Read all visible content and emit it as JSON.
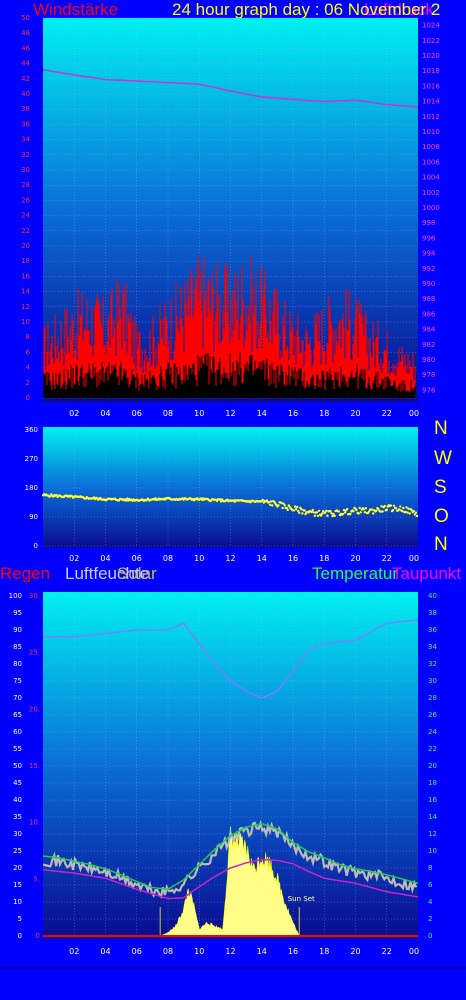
{
  "header": {
    "windstaerke": "Windstärke",
    "title": "24 hour graph day : 06 November 2",
    "luftdruck_overlap": "Luftdruck"
  },
  "compass": [
    "N",
    "W",
    "S",
    "O",
    "N"
  ],
  "legend2": {
    "regen": "Regen",
    "luftfeuchte": "Luftfeuchte",
    "solar": "Solar",
    "temperatur": "Temperatur",
    "taupunkt": "Taupunkt"
  },
  "annotation": {
    "sunset": "Sun Set"
  },
  "colors": {
    "background": "#0000ff",
    "wind_gust": "#ff0000",
    "wind_avg": "#000000",
    "pressure": "#cc33cc",
    "direction": "#ffff33",
    "humidity": "#8877ff",
    "temperature": "#22cc44",
    "dewpoint": "#cc22cc",
    "solar": "#ffff88",
    "temp_raw": "#bbbbbb"
  },
  "chart_data": [
    {
      "type": "line",
      "title": "Windstärke / Luftdruck",
      "x_ticks": [
        "02",
        "04",
        "06",
        "08",
        "10",
        "12",
        "14",
        "16",
        "18",
        "20",
        "22",
        "00"
      ],
      "y_left_ticks": [
        "0",
        "2",
        "4",
        "6",
        "8",
        "10",
        "12",
        "14",
        "16",
        "18",
        "20",
        "22",
        "24",
        "26",
        "28",
        "30",
        "32",
        "34",
        "36",
        "38",
        "40",
        "42",
        "44",
        "46",
        "48",
        "50"
      ],
      "y_right_ticks": [
        "976",
        "978",
        "980",
        "982",
        "984",
        "986",
        "988",
        "990",
        "992",
        "994",
        "996",
        "998",
        "1000",
        "1002",
        "1004",
        "1006",
        "1008",
        "1010",
        "1012",
        "1014",
        "1016",
        "1018",
        "1020",
        "1022",
        "1024"
      ],
      "ylim_left": [
        0,
        50
      ],
      "ylim_right": [
        975,
        1025
      ],
      "series": [
        {
          "name": "Luftdruck",
          "axis": "right",
          "x": [
            0,
            2,
            4,
            6,
            8,
            10,
            12,
            14,
            16,
            18,
            20,
            22,
            24
          ],
          "values": [
            1018.2,
            1017.5,
            1016.9,
            1016.7,
            1016.5,
            1016.3,
            1015.4,
            1014.6,
            1014.3,
            1014.0,
            1014.2,
            1013.6,
            1013.3
          ]
        },
        {
          "name": "Windstärke Böen",
          "axis": "left",
          "x": [
            0,
            1,
            2,
            3,
            4,
            5,
            6,
            7,
            8,
            9,
            10,
            11,
            12,
            13,
            14,
            15,
            16,
            17,
            18,
            19,
            20,
            21,
            22,
            23,
            24
          ],
          "values": [
            9,
            11,
            13,
            14,
            12,
            16,
            9,
            10,
            13,
            15,
            18,
            17,
            16,
            18,
            16,
            14,
            11,
            10,
            12,
            14,
            13,
            10,
            9,
            7,
            6
          ]
        },
        {
          "name": "Windstärke Mittel",
          "axis": "left",
          "x": [
            0,
            1,
            2,
            3,
            4,
            5,
            6,
            7,
            8,
            9,
            10,
            11,
            12,
            13,
            14,
            15,
            16,
            17,
            18,
            19,
            20,
            21,
            22,
            23,
            24
          ],
          "values": [
            3,
            3,
            4,
            4,
            4,
            4,
            3,
            3,
            4,
            4,
            5,
            5,
            5,
            5,
            5,
            4,
            4,
            3,
            3,
            4,
            4,
            3,
            3,
            2,
            2
          ]
        }
      ]
    },
    {
      "type": "scatter",
      "title": "Windrichtung",
      "x_ticks": [
        "02",
        "04",
        "06",
        "08",
        "10",
        "12",
        "14",
        "16",
        "18",
        "20",
        "22",
        "00"
      ],
      "y_ticks": [
        "0",
        "90",
        "180",
        "270",
        "360"
      ],
      "ylim": [
        0,
        360
      ],
      "series": [
        {
          "name": "Windrichtung",
          "x": [
            0,
            2,
            4,
            6,
            8,
            10,
            12,
            14,
            15,
            16,
            17,
            18,
            19,
            20,
            21,
            22,
            23,
            24
          ],
          "values": [
            158,
            152,
            145,
            143,
            146,
            145,
            140,
            138,
            130,
            115,
            105,
            100,
            103,
            110,
            108,
            118,
            115,
            100
          ]
        }
      ]
    },
    {
      "type": "line",
      "title": "Regen / Luftfeuchte / Solar / Temperatur / Taupunkt",
      "x_ticks": [
        "02",
        "04",
        "06",
        "08",
        "10",
        "12",
        "14",
        "16",
        "18",
        "20",
        "22",
        "00"
      ],
      "y_left_pct_ticks": [
        "0",
        "5",
        "10",
        "15",
        "20",
        "25",
        "30",
        "35",
        "40",
        "45",
        "50",
        "55",
        "60",
        "65",
        "70",
        "75",
        "80",
        "85",
        "90",
        "95",
        "100"
      ],
      "y_left_rain_ticks": [
        "0",
        "5.",
        "10.",
        "15.",
        "20.",
        "25.",
        "30."
      ],
      "y_right_ticks": [
        "0",
        "2",
        "4",
        "6",
        "8",
        "10",
        "12",
        "14",
        "16",
        "18",
        "20",
        "22",
        "24",
        "26",
        "28",
        "30",
        "32",
        "34",
        "36",
        "38",
        "40"
      ],
      "ylim_pct": [
        0,
        100
      ],
      "ylim_temp": [
        0,
        40
      ],
      "series": [
        {
          "name": "Luftfeuchte",
          "axis": "pct",
          "x": [
            0,
            2,
            4,
            6,
            8,
            9,
            10,
            11,
            12,
            13,
            14,
            15,
            16,
            17,
            18,
            20,
            22,
            24
          ],
          "values": [
            88,
            88,
            89,
            90,
            90,
            92,
            86,
            80,
            75,
            72,
            70,
            72,
            78,
            84,
            86,
            87,
            92,
            93
          ]
        },
        {
          "name": "Temperatur",
          "axis": "temp",
          "x": [
            0,
            1,
            2,
            3,
            4,
            5,
            6,
            7,
            8,
            9,
            10,
            11,
            12,
            13,
            14,
            15,
            16,
            17,
            18,
            19,
            20,
            21,
            22,
            23,
            24
          ],
          "values": [
            9,
            8.8,
            8.4,
            8.0,
            7.5,
            6.8,
            6.0,
            5.3,
            5.1,
            6.2,
            8.0,
            9.8,
            11.4,
            12.4,
            12.8,
            12.2,
            10.6,
            9.5,
            8.8,
            8.0,
            7.5,
            7.2,
            6.8,
            6.3,
            5.8
          ]
        },
        {
          "name": "Taupunkt",
          "axis": "temp",
          "x": [
            0,
            2,
            4,
            6,
            8,
            9,
            10,
            11,
            12,
            13,
            14,
            15,
            16,
            17,
            18,
            20,
            22,
            24
          ],
          "values": [
            7.8,
            7.4,
            6.8,
            5.5,
            4.4,
            4.5,
            5.8,
            7.0,
            8.0,
            8.6,
            9.0,
            8.9,
            8.5,
            7.6,
            6.8,
            6.2,
            5.2,
            4.6
          ]
        },
        {
          "name": "Solar",
          "axis": "pct",
          "x": [
            7.5,
            8,
            8.5,
            9,
            9.3,
            9.6,
            10,
            10.5,
            11,
            11.5,
            12,
            12.5,
            13,
            13.5,
            14,
            14.5,
            15,
            15.5,
            16,
            16.4
          ],
          "values": [
            0,
            1,
            3,
            8,
            14,
            10,
            2,
            4,
            3,
            2,
            30,
            28,
            26,
            20,
            24,
            22,
            17,
            10,
            4,
            0
          ]
        }
      ]
    }
  ]
}
